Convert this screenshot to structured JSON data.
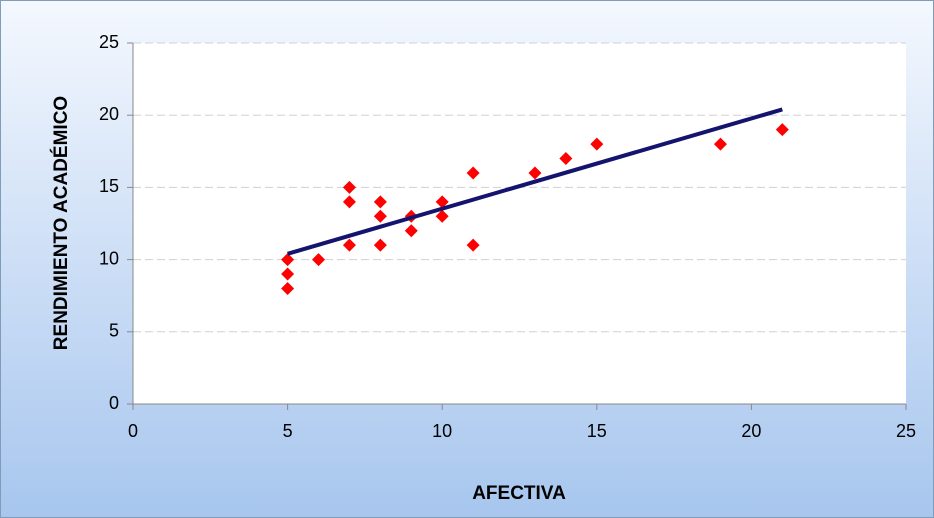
{
  "chart_data": {
    "type": "scatter",
    "xlabel": "AFECTIVA",
    "ylabel": "RENDIMIENTO ACADÉMICO",
    "x": [
      5,
      5,
      5,
      6,
      7,
      7,
      7,
      8,
      8,
      8,
      9,
      9,
      10,
      10,
      11,
      11,
      13,
      14,
      15,
      19,
      21
    ],
    "values": [
      10,
      9,
      8,
      10,
      15,
      14,
      11,
      14,
      13,
      11,
      13,
      12,
      14,
      13,
      16,
      11,
      16,
      17,
      18,
      18,
      19
    ],
    "color": "#ff0000",
    "trendline": {
      "x": [
        5,
        21
      ],
      "y": [
        10.4,
        20.4
      ],
      "color": "#14146e"
    },
    "xlim": [
      0,
      25
    ],
    "xticks": [
      0,
      5,
      10,
      15,
      20,
      25
    ],
    "ylim": [
      0,
      25
    ],
    "yticks": [
      0,
      5,
      10,
      15,
      20,
      25
    ],
    "grid": true
  }
}
